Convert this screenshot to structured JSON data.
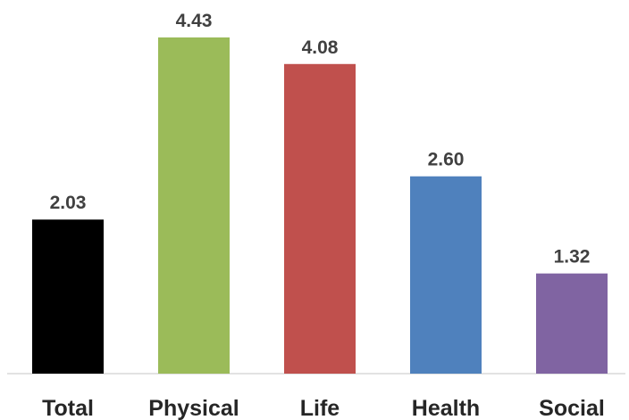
{
  "chart_data": {
    "type": "bar",
    "categories": [
      "Total",
      "Physical",
      "Life",
      "Health",
      "Social"
    ],
    "values": [
      2.03,
      4.43,
      4.08,
      2.6,
      1.32
    ],
    "value_labels": [
      "2.03",
      "4.43",
      "4.08",
      "2.60",
      "1.32"
    ],
    "colors": [
      "#000000",
      "#9BBB59",
      "#C0504D",
      "#4F81BD",
      "#8064A2"
    ],
    "ylim": [
      0,
      4.43
    ],
    "grid": false,
    "legend": "none"
  }
}
